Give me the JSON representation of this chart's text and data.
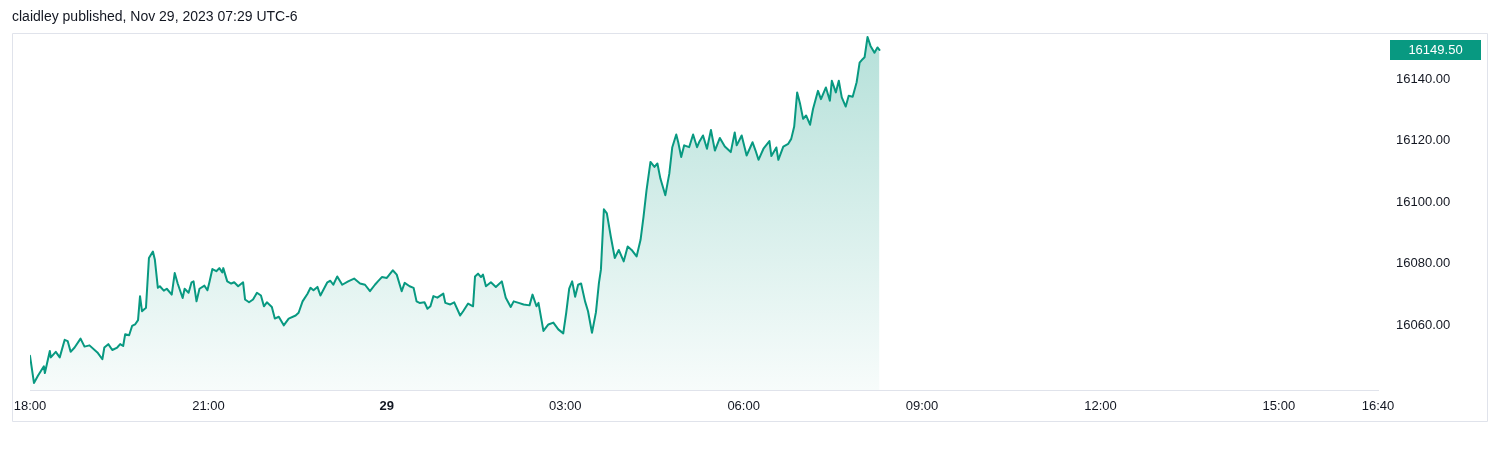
{
  "chart_data": {
    "type": "area",
    "title": "claidley published, Nov 29, 2023 07:29 UTC-6",
    "color": "#089981",
    "x": [
      "2023-11-28T18:00",
      "2023-11-28T18:04",
      "2023-11-28T18:08",
      "2023-11-28T18:11",
      "2023-11-28T18:14",
      "2023-11-28T18:15",
      "2023-11-28T18:20",
      "2023-11-28T18:21",
      "2023-11-28T18:26",
      "2023-11-28T18:30",
      "2023-11-28T18:35",
      "2023-11-28T18:38",
      "2023-11-28T18:41",
      "2023-11-28T18:45",
      "2023-11-28T18:51",
      "2023-11-28T18:55",
      "2023-11-28T19:00",
      "2023-11-28T19:08",
      "2023-11-28T19:13",
      "2023-11-28T19:15",
      "2023-11-28T19:19",
      "2023-11-28T19:23",
      "2023-11-28T19:28",
      "2023-11-28T19:31",
      "2023-11-28T19:34",
      "2023-11-28T19:36",
      "2023-11-28T19:40",
      "2023-11-28T19:43",
      "2023-11-28T19:46",
      "2023-11-28T19:49",
      "2023-11-28T19:51",
      "2023-11-28T19:53",
      "2023-11-28T19:57",
      "2023-11-28T20:00",
      "2023-11-28T20:04",
      "2023-11-28T20:06",
      "2023-11-28T20:09",
      "2023-11-28T20:11",
      "2023-11-28T20:15",
      "2023-11-28T20:18",
      "2023-11-28T20:23",
      "2023-11-28T20:26",
      "2023-11-28T20:29",
      "2023-11-28T20:34",
      "2023-11-28T20:36",
      "2023-11-28T20:40",
      "2023-11-28T20:43",
      "2023-11-28T20:45",
      "2023-11-28T20:48",
      "2023-11-28T20:51",
      "2023-11-28T20:56",
      "2023-11-28T20:59",
      "2023-11-28T21:01",
      "2023-11-28T21:04",
      "2023-11-28T21:08",
      "2023-11-28T21:11",
      "2023-11-28T21:14",
      "2023-11-28T21:15",
      "2023-11-28T21:19",
      "2023-11-28T21:23",
      "2023-11-28T21:26",
      "2023-11-28T21:30",
      "2023-11-28T21:35",
      "2023-11-28T21:37",
      "2023-11-28T21:41",
      "2023-11-28T21:45",
      "2023-11-28T21:49",
      "2023-11-28T21:53",
      "2023-11-28T21:56",
      "2023-11-28T21:59",
      "2023-11-28T22:04",
      "2023-11-28T22:07",
      "2023-11-28T22:11",
      "2023-11-28T22:16",
      "2023-11-28T22:21",
      "2023-11-28T22:28",
      "2023-11-28T22:31",
      "2023-11-28T22:35",
      "2023-11-28T22:40",
      "2023-11-28T22:43",
      "2023-11-28T22:46",
      "2023-11-28T22:50",
      "2023-11-28T22:53",
      "2023-11-28T23:00",
      "2023-11-28T23:03",
      "2023-11-28T23:06",
      "2023-11-28T23:10",
      "2023-11-28T23:15",
      "2023-11-28T23:21",
      "2023-11-28T23:27",
      "2023-11-28T23:33",
      "2023-11-28T23:38",
      "2023-11-28T23:43",
      "2023-11-28T23:48",
      "2023-11-28T23:51",
      "2023-11-28T23:55",
      "2023-11-29T00:00",
      "2023-11-29T00:06",
      "2023-11-29T00:10",
      "2023-11-29T00:15",
      "2023-11-29T00:18",
      "2023-11-29T00:23",
      "2023-11-29T00:27",
      "2023-11-29T00:30",
      "2023-11-29T00:33",
      "2023-11-29T00:38",
      "2023-11-29T00:41",
      "2023-11-29T00:44",
      "2023-11-29T00:47",
      "2023-11-29T00:51",
      "2023-11-29T00:57",
      "2023-11-29T00:59",
      "2023-11-29T01:04",
      "2023-11-29T01:08",
      "2023-11-29T01:14",
      "2023-11-29T01:17",
      "2023-11-29T01:22",
      "2023-11-29T01:27",
      "2023-11-29T01:29",
      "2023-11-29T01:32",
      "2023-11-29T01:35",
      "2023-11-29T01:37",
      "2023-11-29T01:40",
      "2023-11-29T01:45",
      "2023-11-29T01:50",
      "2023-11-29T01:56",
      "2023-11-29T02:00",
      "2023-11-29T02:05",
      "2023-11-29T02:08",
      "2023-11-29T02:13",
      "2023-11-29T02:18",
      "2023-11-29T02:24",
      "2023-11-29T02:27",
      "2023-11-29T02:31",
      "2023-11-29T02:33",
      "2023-11-29T02:38",
      "2023-11-29T02:43",
      "2023-11-29T02:48",
      "2023-11-29T02:53",
      "2023-11-29T02:58",
      "2023-11-29T03:01",
      "2023-11-29T03:04",
      "2023-11-29T03:07",
      "2023-11-29T03:10",
      "2023-11-29T03:13",
      "2023-11-29T03:16",
      "2023-11-29T03:20",
      "2023-11-29T03:23",
      "2023-11-29T03:27",
      "2023-11-29T03:31",
      "2023-11-29T03:34",
      "2023-11-29T03:36",
      "2023-11-29T03:39",
      "2023-11-29T03:42",
      "2023-11-29T03:46",
      "2023-11-29T03:50",
      "2023-11-29T03:54",
      "2023-11-29T03:59",
      "2023-11-29T04:03",
      "2023-11-29T04:07",
      "2023-11-29T04:12",
      "2023-11-29T04:16",
      "2023-11-29T04:19",
      "2023-11-29T04:22",
      "2023-11-29T04:26",
      "2023-11-29T04:30",
      "2023-11-29T04:33",
      "2023-11-29T04:36",
      "2023-11-29T04:41",
      "2023-11-29T04:45",
      "2023-11-29T04:48",
      "2023-11-29T04:52",
      "2023-11-29T04:54",
      "2023-11-29T04:57",
      "2023-11-29T05:00",
      "2023-11-29T05:05",
      "2023-11-29T05:09",
      "2023-11-29T05:13",
      "2023-11-29T05:15",
      "2023-11-29T05:19",
      "2023-11-29T05:23",
      "2023-11-29T05:27",
      "2023-11-29T05:31",
      "2023-11-29T05:36",
      "2023-11-29T05:41",
      "2023-11-29T05:47",
      "2023-11-29T05:51",
      "2023-11-29T05:53",
      "2023-11-29T05:58",
      "2023-11-29T06:03",
      "2023-11-29T06:09",
      "2023-11-29T06:12",
      "2023-11-29T06:15",
      "2023-11-29T06:20",
      "2023-11-29T06:26",
      "2023-11-29T06:28",
      "2023-11-29T06:33",
      "2023-11-29T06:35",
      "2023-11-29T06:40",
      "2023-11-29T06:45",
      "2023-11-29T06:48",
      "2023-11-29T06:51",
      "2023-11-29T06:54",
      "2023-11-29T06:57",
      "2023-11-29T07:00",
      "2023-11-29T07:03",
      "2023-11-29T07:07",
      "2023-11-29T07:10",
      "2023-11-29T07:15",
      "2023-11-29T07:18",
      "2023-11-29T07:23",
      "2023-11-29T07:27",
      "2023-11-29T07:29",
      "2023-11-29T07:33",
      "2023-11-29T07:36",
      "2023-11-29T07:39",
      "2023-11-29T07:43",
      "2023-11-29T07:46",
      "2023-11-29T07:50",
      "2023-11-29T07:54",
      "2023-11-29T07:57",
      "2023-11-29T08:00",
      "2023-11-29T08:02",
      "2023-11-29T08:05",
      "2023-11-29T08:08",
      "2023-11-29T08:12",
      "2023-11-29T08:15",
      "2023-11-29T08:17"
    ],
    "values": [
      16050.1,
      16041.3,
      16043.6,
      16045.2,
      16046.7,
      16044.5,
      16051.7,
      16049.6,
      16051.4,
      16049.6,
      16055.3,
      16054.9,
      16051.4,
      16052.8,
      16055.7,
      16053.1,
      16053.5,
      16051.2,
      16049.0,
      16052.8,
      16053.9,
      16052.0,
      16052.8,
      16053.9,
      16053.3,
      16057.1,
      16056.8,
      16059.8,
      16060.3,
      16061.7,
      16069.5,
      16064.6,
      16065.7,
      16081.9,
      16084.0,
      16081.3,
      16072.2,
      16072.7,
      16071.3,
      16071.9,
      16070.0,
      16077.0,
      16073.6,
      16068.9,
      16071.9,
      16070.6,
      16074.0,
      16074.3,
      16067.8,
      16071.9,
      16072.9,
      16071.4,
      16074.0,
      16078.3,
      16077.6,
      16078.6,
      16077.2,
      16078.6,
      16074.3,
      16073.6,
      16074.0,
      16072.7,
      16074.0,
      16068.4,
      16067.5,
      16068.4,
      16070.6,
      16069.7,
      16066.2,
      16067.5,
      16066.0,
      16062.2,
      16062.8,
      16060.0,
      16062.2,
      16063.2,
      16064.1,
      16067.8,
      16070.3,
      16072.2,
      16071.4,
      16072.5,
      16069.7,
      16074.0,
      16074.5,
      16073.2,
      16075.9,
      16073.2,
      16074.3,
      16075.2,
      16073.6,
      16073.2,
      16071.1,
      16073.2,
      16074.3,
      16075.7,
      16075.4,
      16077.9,
      16076.5,
      16071.1,
      16073.8,
      16072.7,
      16072.2,
      16067.8,
      16067.3,
      16067.5,
      16065.4,
      16066.2,
      16069.5,
      16069.0,
      16070.3,
      16067.3,
      16066.8,
      16067.5,
      16063.2,
      16064.6,
      16067.1,
      16066.2,
      16075.9,
      16076.8,
      16075.7,
      16076.5,
      16072.7,
      16074.0,
      16072.5,
      16074.3,
      16069.0,
      16066.0,
      16067.8,
      16067.3,
      16066.8,
      16066.5,
      16070.0,
      16066.2,
      16067.3,
      16058.2,
      16060.3,
      16060.9,
      16058.7,
      16057.4,
      16064.1,
      16071.9,
      16074.3,
      16069.3,
      16073.2,
      16073.6,
      16067.8,
      16064.6,
      16057.6,
      16064.3,
      16073.8,
      16078.1,
      16097.7,
      16096.4,
      16088.8,
      16081.9,
      16084.5,
      16080.8,
      16085.6,
      16084.5,
      16082.4,
      16087.8,
      16095.3,
      16103.9,
      16113.1,
      16111.5,
      16112.6,
      16107.7,
      16102.3,
      16109.3,
      16117.9,
      16122.0,
      16119.5,
      16114.7,
      16118.5,
      16117.9,
      16122.0,
      16117.9,
      16119.5,
      16121.7,
      16117.4,
      16123.5,
      16116.8,
      16120.9,
      16118.1,
      16116.3,
      16122.7,
      16118.5,
      16121.7,
      16115.2,
      16119.5,
      16116.8,
      16113.8,
      16117.4,
      16119.9,
      16115.0,
      16117.8,
      16113.8,
      16118.1,
      16119.0,
      16120.6,
      16124.6,
      16135.7,
      16131.9,
      16127.1,
      16128.2,
      16125.2,
      16130.3,
      16136.2,
      16133.5,
      16137.3,
      16133.0,
      16139.5,
      16135.7,
      16139.5,
      16134.1,
      16131.1,
      16134.6,
      16134.3,
      16139.0,
      16145.4,
      16146.5,
      16147.1,
      16153.7,
      16150.8,
      16148.6,
      16150.3,
      16149.5
    ],
    "xlim": [
      "2023-11-28T18:00",
      "2023-11-29T16:40"
    ],
    "xticks": [
      {
        "value": "2023-11-28T18:00",
        "label": "18:00"
      },
      {
        "value": "2023-11-28T21:00",
        "label": "21:00"
      },
      {
        "value": "2023-11-29",
        "label": "29"
      },
      {
        "value": "2023-11-29T03:00",
        "label": "03:00"
      },
      {
        "value": "2023-11-29T06:00",
        "label": "06:00"
      },
      {
        "value": "2023-11-29T09:00",
        "label": "09:00"
      },
      {
        "value": "2023-11-29T12:00",
        "label": "12:00"
      },
      {
        "value": "2023-11-29T15:00",
        "label": "15:00"
      },
      {
        "value": "2023-11-29T16:40",
        "label": "16:40"
      }
    ],
    "ylim": [
      16039,
      16155
    ],
    "yticks": [
      {
        "value": 16060,
        "label": "16060.00"
      },
      {
        "value": 16080,
        "label": "16080.00"
      },
      {
        "value": 16100,
        "label": "16100.00"
      },
      {
        "value": 16120,
        "label": "16120.00"
      },
      {
        "value": 16140,
        "label": "16140.00"
      }
    ],
    "annotations": [
      "16149.50"
    ]
  }
}
